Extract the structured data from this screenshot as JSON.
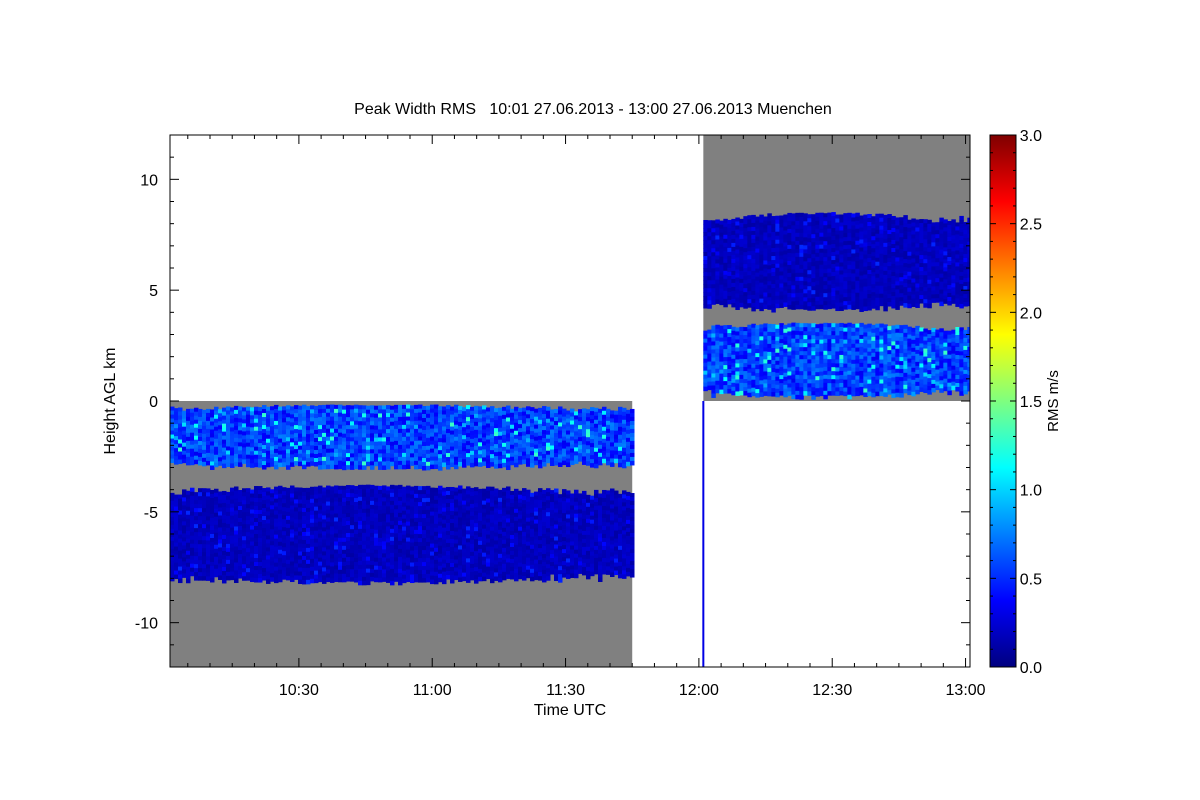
{
  "chart_data": {
    "type": "heatmap",
    "title": "Peak Width RMS   10:01 27.06.2013 - 13:00 27.06.2013 Muenchen",
    "xlabel": "Time UTC",
    "ylabel": "Height AGL km",
    "x_range_minutes": [
      601,
      781
    ],
    "x_ticks": [
      {
        "minute": 630,
        "label": "10:30"
      },
      {
        "minute": 660,
        "label": "11:00"
      },
      {
        "minute": 690,
        "label": "11:30"
      },
      {
        "minute": 720,
        "label": "12:00"
      },
      {
        "minute": 750,
        "label": "12:30"
      },
      {
        "minute": 780,
        "label": "13:00"
      }
    ],
    "ylim": [
      -12,
      12
    ],
    "y_ticks": [
      {
        "value": 10,
        "label": "10"
      },
      {
        "value": 5,
        "label": "5"
      },
      {
        "value": 0,
        "label": "0"
      },
      {
        "value": -5,
        "label": "-5"
      },
      {
        "value": -10,
        "label": "-10"
      }
    ],
    "colorbar": {
      "label": "RMS m/s",
      "range": [
        0,
        3
      ],
      "ticks": [
        {
          "value": 0,
          "label": "0.0"
        },
        {
          "value": 0.5,
          "label": "0.5"
        },
        {
          "value": 1.0,
          "label": "1.0"
        },
        {
          "value": 1.5,
          "label": "1.5"
        },
        {
          "value": 2.0,
          "label": "2.0"
        },
        {
          "value": 2.5,
          "label": "2.5"
        },
        {
          "value": 3.0,
          "label": "3.0"
        }
      ]
    },
    "segments": [
      {
        "time_start_min": 601,
        "time_end_min": 705,
        "height_range_km": [
          -12,
          0
        ],
        "layers": [
          {
            "height_range_km": [
              -3.0,
              -0.1
            ],
            "typical_rms": 0.6,
            "max_rms": 1.3
          },
          {
            "height_range_km": [
              -8.2,
              -3.7
            ],
            "typical_rms": 0.2,
            "max_rms": 0.5
          }
        ]
      },
      {
        "time_start_min": 721,
        "time_end_min": 781,
        "height_range_km": [
          0,
          12
        ],
        "layers": [
          {
            "height_range_km": [
              4.1,
              8.6
            ],
            "typical_rms": 0.2,
            "max_rms": 0.5
          },
          {
            "height_range_km": [
              0.2,
              3.6
            ],
            "typical_rms": 0.6,
            "max_rms": 1.3
          }
        ]
      }
    ],
    "colors": {
      "no_data_background": "#808080",
      "colormap": [
        "#00007f",
        "#0000ff",
        "#007fff",
        "#00ffff",
        "#7fff7f",
        "#ffff00",
        "#ff7f00",
        "#ff0000",
        "#7f0000"
      ]
    }
  }
}
